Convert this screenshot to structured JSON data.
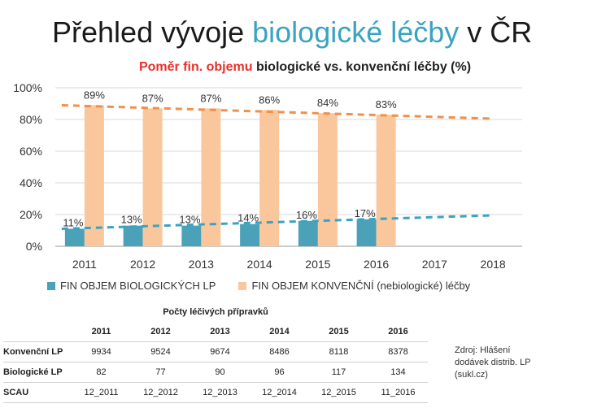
{
  "header": {
    "title_main": "Přehled vývoje ",
    "title_accent": "biologické léčby",
    "title_tail": " v ČR",
    "subtitle_red": "Poměr fin. objemu",
    "subtitle_rest": " biologické vs. konvenční léčby (%)"
  },
  "colors": {
    "biologic": "#4aa1b8",
    "conventional": "#fac79d",
    "bio_trend": "#3aa3c2",
    "conv_trend": "#f0904a",
    "accent": "#3aa3c2",
    "red": "#e8312a"
  },
  "chart_data": {
    "type": "bar",
    "categories": [
      "2011",
      "2012",
      "2013",
      "2014",
      "2015",
      "2016",
      "2017",
      "2018"
    ],
    "ylim": [
      0,
      100
    ],
    "y_ticks": [
      "0%",
      "20%",
      "40%",
      "60%",
      "80%",
      "100%"
    ],
    "grid": true,
    "legend_position": "bottom",
    "series": [
      {
        "name": "FIN OBJEM BIOLOGICKÝCH LP",
        "values": [
          11,
          13,
          13,
          14,
          16,
          17,
          null,
          null
        ],
        "labels": [
          "11%",
          "13%",
          "13%",
          "14%",
          "16%",
          "17%",
          "",
          ""
        ]
      },
      {
        "name": "FIN OBJEM KONVENČNÍ (nebiologické) léčby",
        "values": [
          89,
          87,
          87,
          86,
          84,
          83,
          null,
          null
        ],
        "labels": [
          "89%",
          "87%",
          "87%",
          "86%",
          "84%",
          "83%",
          "",
          ""
        ]
      }
    ],
    "trendlines": [
      {
        "series": "FIN OBJEM BIOLOGICKÝCH LP",
        "start": 11,
        "end": 19.5
      },
      {
        "series": "FIN OBJEM KONVENČNÍ (nebiologické) léčby",
        "start": 89,
        "end": 80.5
      }
    ]
  },
  "table": {
    "title": "Počty léčivých přípravků",
    "columns": [
      "2011",
      "2012",
      "2013",
      "2014",
      "2015",
      "2016"
    ],
    "rows": [
      {
        "label": "Konvenční LP",
        "values": [
          "9934",
          "9524",
          "9674",
          "8486",
          "8118",
          "8378"
        ]
      },
      {
        "label": "Biologické LP",
        "values": [
          "82",
          "77",
          "90",
          "96",
          "117",
          "134"
        ]
      },
      {
        "label": "SCAU",
        "values": [
          "12_2011",
          "12_2012",
          "12_2013",
          "12_2014",
          "12_2015",
          "11_2016"
        ]
      }
    ]
  },
  "source": {
    "line1": "Zdroj: Hlášení",
    "line2": "dodávek distrib. LP",
    "line3": "(sukl.cz)"
  }
}
